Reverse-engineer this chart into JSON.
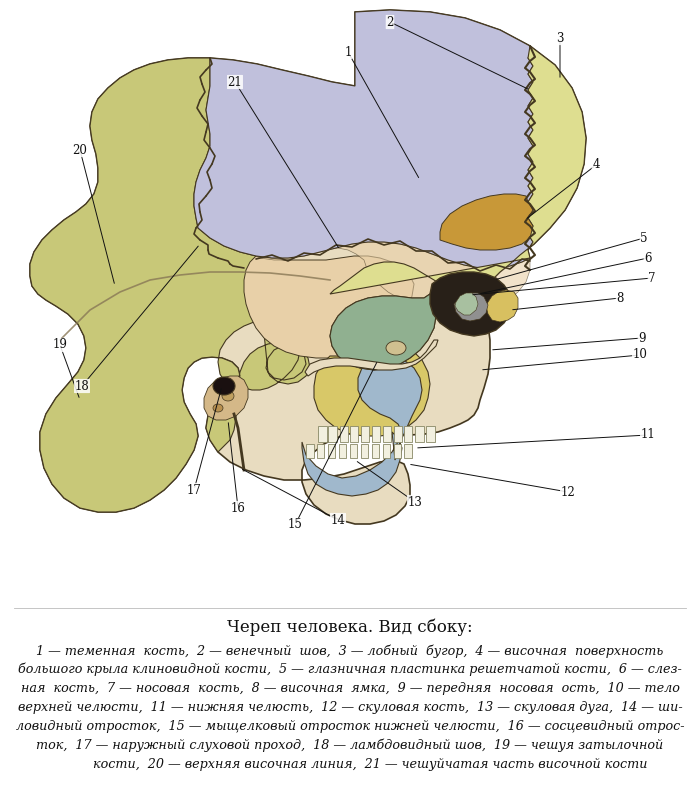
{
  "title": "Череп человека. Вид сбоку:",
  "title_fontsize": 12,
  "bg_color": "#ffffff",
  "caption_lines": [
    "1 — теменная  кость,  2 — венечный  шов,  3 — лобный  бугор,  4 — височная  поверхность",
    "большого крыла клиновидной кости,  5 — глазничная пластинка решетчатой кости,  6 — слез-",
    "ная  кость,  7 — носовая  кость,  8 — височная  ямка,  9 — передняя  носовая  ость,  10 — тело",
    "верхней челюсти,  11 — нижняя челюсть,  12 — скуловая кость,  13 — скуловая дуга,  14 — ши-",
    "ловидный отросток,  15 — мыщелковый отросток нижней челюсти,  16 — сосцевидный отрос-",
    "ток,  17 — наружный слуховой проход,  18 — ламбдовидный шов,  19 — чешуя затылочной",
    "          кости,  20 — верхняя височная линия,  21 — чешуйчатая часть височной кости"
  ],
  "caption_fontsize": 9.2,
  "C_parietal": "#c0c0dc",
  "C_frontal": "#dede90",
  "C_temporal": "#e8d0a8",
  "C_occipital": "#c8c878",
  "C_sphenoid": "#c89838",
  "C_zygomatic": "#90b090",
  "C_maxilla": "#d8c868",
  "C_mandible": "#a0b8cc",
  "C_nasal": "#d8c060",
  "C_lacrimal": "#a8c0a0",
  "C_ethmoid": "#909090",
  "C_orbit": "#282018",
  "C_bone_base": "#e8dcc0",
  "C_outline": "#443820"
}
